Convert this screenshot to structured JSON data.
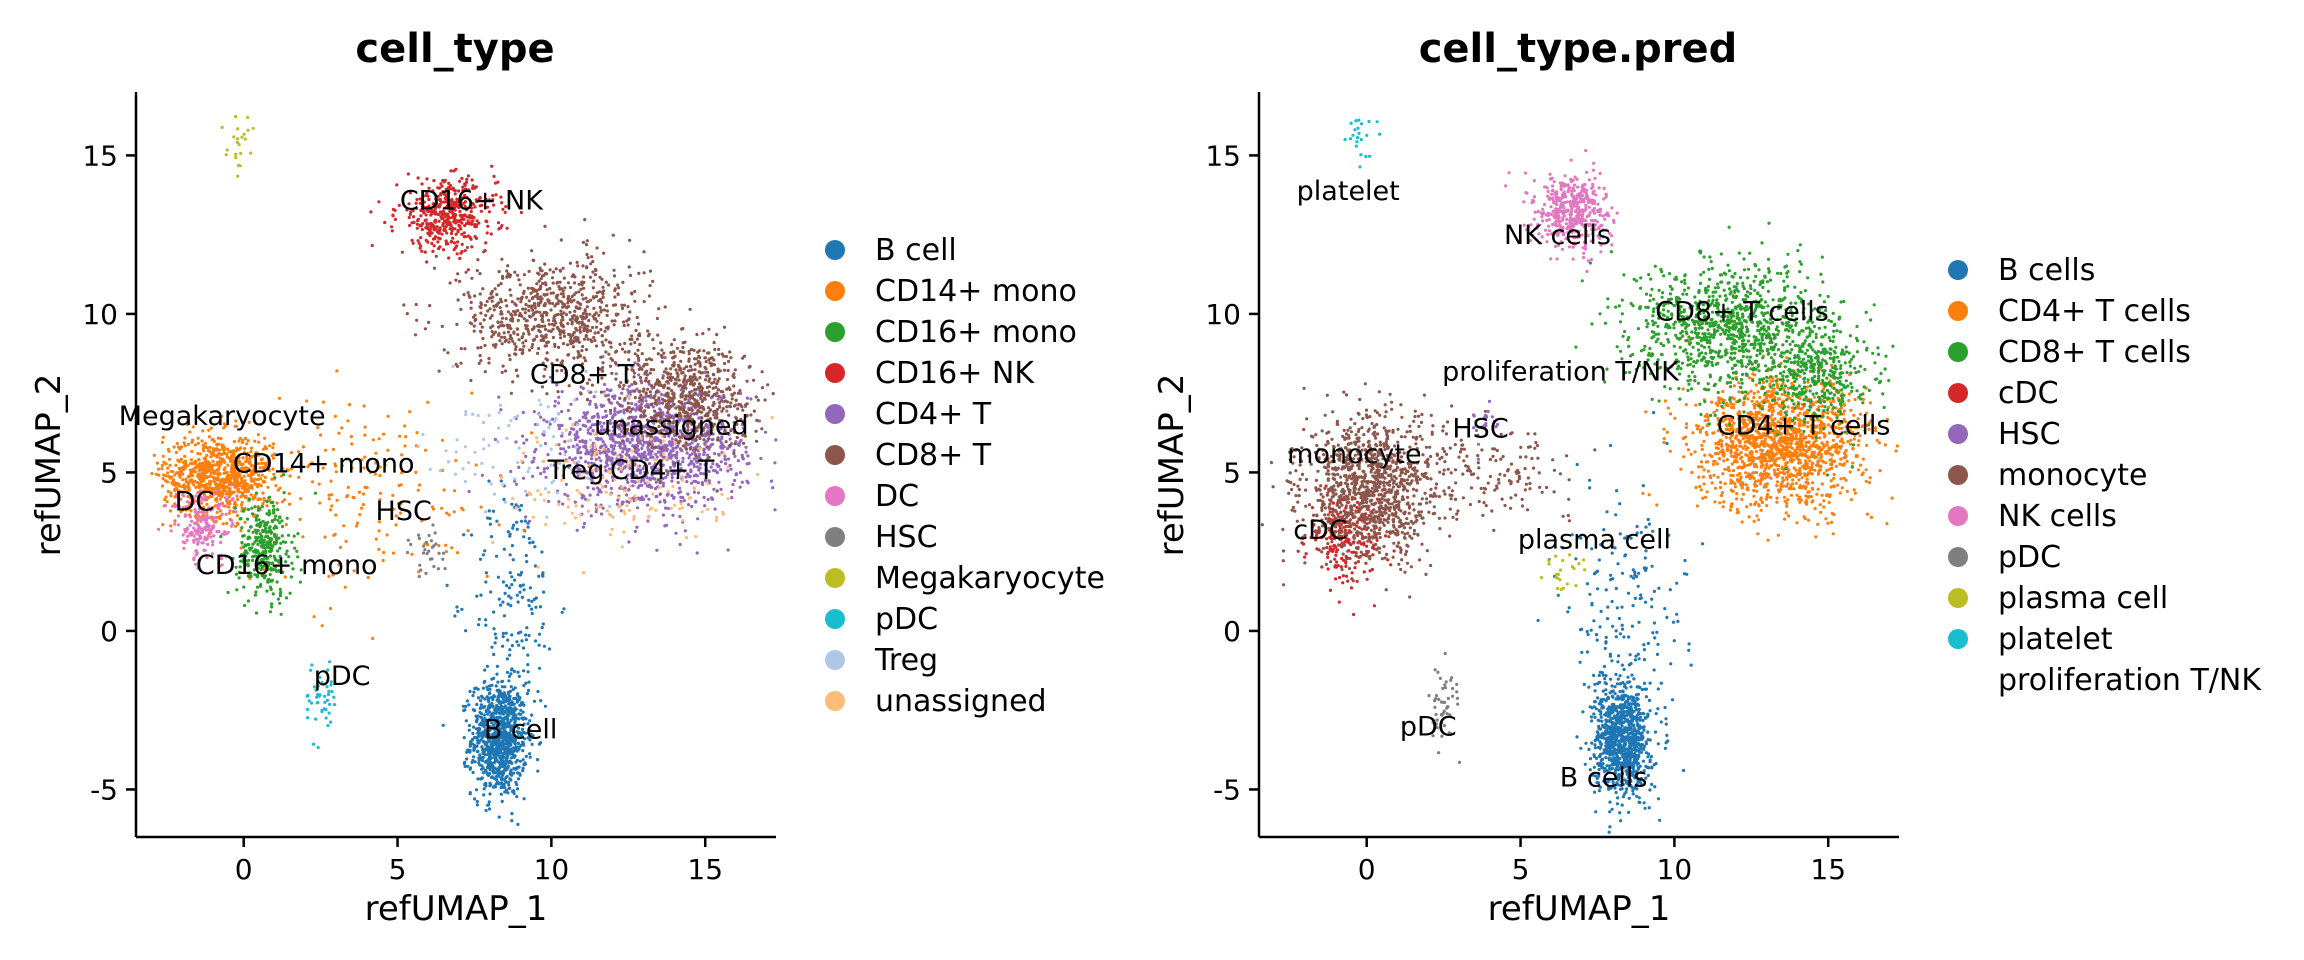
{
  "chart_data": [
    {
      "type": "scatter",
      "title": "cell_type",
      "xlabel": "refUMAP_1",
      "ylabel": "refUMAP_2",
      "xlim": [
        -3.5,
        17.3
      ],
      "ylim": [
        -6.5,
        17.0
      ],
      "xticks": [
        0,
        5,
        10,
        15
      ],
      "yticks": [
        -5,
        0,
        5,
        10,
        15
      ],
      "xtick_labels": [
        "0",
        "5",
        "10",
        "15"
      ],
      "ytick_labels": [
        "-5",
        "0",
        "5",
        "10",
        "15"
      ],
      "legend_position": "right",
      "legend": [
        {
          "label": "B cell",
          "color": "#1f77b4"
        },
        {
          "label": "CD14+ mono",
          "color": "#ff7f0e"
        },
        {
          "label": "CD16+ mono",
          "color": "#2ca02c"
        },
        {
          "label": "CD16+ NK",
          "color": "#d62728"
        },
        {
          "label": "CD4+ T",
          "color": "#9467bd"
        },
        {
          "label": "CD8+ T",
          "color": "#8c564b"
        },
        {
          "label": "DC",
          "color": "#e377c2"
        },
        {
          "label": "HSC",
          "color": "#7f7f7f"
        },
        {
          "label": "Megakaryocyte",
          "color": "#bcbd22"
        },
        {
          "label": "pDC",
          "color": "#17becf"
        },
        {
          "label": "Treg",
          "color": "#aec7e8"
        },
        {
          "label": "unassigned",
          "color": "#ffbb78"
        }
      ],
      "clusters": [
        {
          "color": "#1f77b4",
          "cx": 8.3,
          "cy": -3.4,
          "sx": 0.45,
          "sy": 0.9,
          "n": 950
        },
        {
          "color": "#1f77b4",
          "cx": 8.8,
          "cy": 1.0,
          "sx": 0.7,
          "sy": 1.8,
          "n": 160
        },
        {
          "color": "#ff7f0e",
          "cx": -0.8,
          "cy": 4.9,
          "sx": 0.9,
          "sy": 0.65,
          "n": 850
        },
        {
          "color": "#ff7f0e",
          "cx": 4.0,
          "cy": 4.4,
          "sx": 2.2,
          "sy": 1.6,
          "n": 170
        },
        {
          "color": "#2ca02c",
          "cx": 0.7,
          "cy": 2.6,
          "sx": 0.45,
          "sy": 0.8,
          "n": 320
        },
        {
          "color": "#d62728",
          "cx": 6.6,
          "cy": 13.1,
          "sx": 0.8,
          "sy": 0.55,
          "n": 420
        },
        {
          "color": "#9467bd",
          "cx": 13.1,
          "cy": 5.8,
          "sx": 1.6,
          "sy": 0.95,
          "n": 1300
        },
        {
          "color": "#8c564b",
          "cx": 10.0,
          "cy": 10.0,
          "sx": 1.5,
          "sy": 0.9,
          "n": 750
        },
        {
          "color": "#8c564b",
          "cx": 14.3,
          "cy": 7.5,
          "sx": 1.1,
          "sy": 0.9,
          "n": 650
        },
        {
          "color": "#e377c2",
          "cx": -1.3,
          "cy": 3.3,
          "sx": 0.5,
          "sy": 0.55,
          "n": 180
        },
        {
          "color": "#7f7f7f",
          "cx": 6.0,
          "cy": 2.5,
          "sx": 0.35,
          "sy": 0.45,
          "n": 30
        },
        {
          "color": "#bcbd22",
          "cx": -0.2,
          "cy": 15.3,
          "sx": 0.25,
          "sy": 0.5,
          "n": 22
        },
        {
          "color": "#17becf",
          "cx": 2.5,
          "cy": -2.2,
          "sx": 0.25,
          "sy": 0.7,
          "n": 45
        },
        {
          "color": "#aec7e8",
          "cx": 9.0,
          "cy": 5.8,
          "sx": 1.5,
          "sy": 1.0,
          "n": 90
        },
        {
          "color": "#ffbb78",
          "cx": 12.5,
          "cy": 4.6,
          "sx": 2.0,
          "sy": 1.0,
          "n": 160
        }
      ],
      "annotations": [
        {
          "text": "CD16+ NK",
          "x": 7.4,
          "y": 13.3
        },
        {
          "text": "CD8+ T",
          "x": 11.0,
          "y": 7.8
        },
        {
          "text": "Megakaryocyte",
          "x": -0.7,
          "y": 6.5
        },
        {
          "text": "unassigned",
          "x": 13.9,
          "y": 6.2
        },
        {
          "text": "CD14+ mono",
          "x": 2.6,
          "y": 5.0
        },
        {
          "text": "Treg",
          "x": 10.8,
          "y": 4.8
        },
        {
          "text": "CD4+ T",
          "x": 13.6,
          "y": 4.8
        },
        {
          "text": "DC",
          "x": -1.6,
          "y": 3.8
        },
        {
          "text": "HSC",
          "x": 5.2,
          "y": 3.5
        },
        {
          "text": "CD16+ mono",
          "x": 1.4,
          "y": 1.8
        },
        {
          "text": "pDC",
          "x": 3.2,
          "y": -1.7
        },
        {
          "text": "B cell",
          "x": 9.0,
          "y": -3.4
        }
      ]
    },
    {
      "type": "scatter",
      "title": "cell_type.pred",
      "xlabel": "refUMAP_1",
      "ylabel": "refUMAP_2",
      "xlim": [
        -3.5,
        17.3
      ],
      "ylim": [
        -6.5,
        17.0
      ],
      "xticks": [
        0,
        5,
        10,
        15
      ],
      "yticks": [
        -5,
        0,
        5,
        10,
        15
      ],
      "xtick_labels": [
        "0",
        "5",
        "10",
        "15"
      ],
      "ytick_labels": [
        "-5",
        "0",
        "5",
        "10",
        "15"
      ],
      "legend_position": "right",
      "legend": [
        {
          "label": "B cells",
          "color": "#1f77b4"
        },
        {
          "label": "CD4+ T cells",
          "color": "#ff7f0e"
        },
        {
          "label": "CD8+ T cells",
          "color": "#2ca02c"
        },
        {
          "label": "cDC",
          "color": "#d62728"
        },
        {
          "label": "HSC",
          "color": "#9467bd"
        },
        {
          "label": "monocyte",
          "color": "#8c564b"
        },
        {
          "label": "NK cells",
          "color": "#e377c2"
        },
        {
          "label": "pDC",
          "color": "#7f7f7f"
        },
        {
          "label": "plasma cell",
          "color": "#bcbd22"
        },
        {
          "label": "platelet",
          "color": "#17becf"
        },
        {
          "label": "proliferation T/NK",
          "color": ""
        }
      ],
      "clusters": [
        {
          "color": "#1f77b4",
          "cx": 8.3,
          "cy": -3.4,
          "sx": 0.45,
          "sy": 0.9,
          "n": 950
        },
        {
          "color": "#1f77b4",
          "cx": 8.4,
          "cy": 1.2,
          "sx": 1.0,
          "sy": 1.8,
          "n": 160
        },
        {
          "color": "#ff7f0e",
          "cx": 13.5,
          "cy": 5.9,
          "sx": 1.4,
          "sy": 1.0,
          "n": 1500
        },
        {
          "color": "#2ca02c",
          "cx": 11.8,
          "cy": 9.6,
          "sx": 1.6,
          "sy": 1.0,
          "n": 1000
        },
        {
          "color": "#2ca02c",
          "cx": 14.6,
          "cy": 8.1,
          "sx": 0.9,
          "sy": 0.8,
          "n": 400
        },
        {
          "color": "#d62728",
          "cx": -0.7,
          "cy": 2.9,
          "sx": 0.6,
          "sy": 0.7,
          "n": 220
        },
        {
          "color": "#9467bd",
          "cx": 3.9,
          "cy": 6.5,
          "sx": 0.3,
          "sy": 0.4,
          "n": 20
        },
        {
          "color": "#8c564b",
          "cx": 0.1,
          "cy": 4.5,
          "sx": 1.1,
          "sy": 1.1,
          "n": 1100
        },
        {
          "color": "#8c564b",
          "cx": 4.0,
          "cy": 5.0,
          "sx": 1.5,
          "sy": 0.7,
          "n": 150
        },
        {
          "color": "#e377c2",
          "cx": 6.7,
          "cy": 13.2,
          "sx": 0.6,
          "sy": 0.6,
          "n": 450
        },
        {
          "color": "#7f7f7f",
          "cx": 2.5,
          "cy": -2.3,
          "sx": 0.25,
          "sy": 0.7,
          "n": 50
        },
        {
          "color": "#bcbd22",
          "cx": 6.3,
          "cy": 1.8,
          "sx": 0.4,
          "sy": 0.5,
          "n": 22
        },
        {
          "color": "#17becf",
          "cx": -0.2,
          "cy": 15.4,
          "sx": 0.25,
          "sy": 0.4,
          "n": 22
        }
      ],
      "annotations": [
        {
          "text": "platelet",
          "x": -0.6,
          "y": 13.6
        },
        {
          "text": "NK cells",
          "x": 6.2,
          "y": 12.2
        },
        {
          "text": "CD8+ T cells",
          "x": 12.2,
          "y": 9.8
        },
        {
          "text": "proliferation T/NK",
          "x": 6.3,
          "y": 7.9
        },
        {
          "text": "HSC",
          "x": 3.7,
          "y": 6.1
        },
        {
          "text": "CD4+ T cells",
          "x": 14.2,
          "y": 6.2
        },
        {
          "text": "monocyte",
          "x": -0.4,
          "y": 5.3
        },
        {
          "text": "cDC",
          "x": -1.5,
          "y": 2.9
        },
        {
          "text": "plasma cell",
          "x": 7.4,
          "y": 2.6
        },
        {
          "text": "pDC",
          "x": 2.0,
          "y": -3.3
        },
        {
          "text": "B cells",
          "x": 7.7,
          "y": -4.9
        }
      ]
    }
  ]
}
